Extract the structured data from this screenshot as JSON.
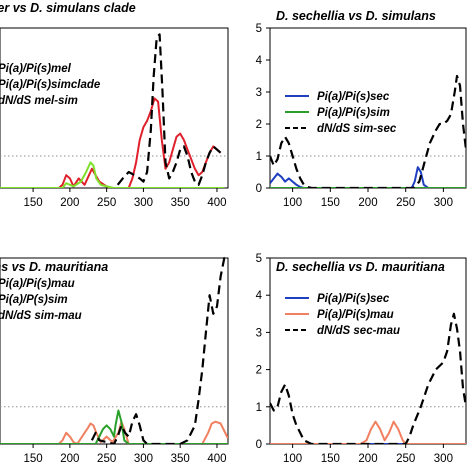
{
  "colors": {
    "blue": "#1f3fbf",
    "green": "#2aa02a",
    "lightgreen": "#7fe02a",
    "red": "#e0202a",
    "salmon": "#f08060",
    "black": "#000000",
    "threshold": "#909090"
  },
  "chart_data": [
    {
      "type": "line",
      "title": "D. melanogaster vs D. simulans clade",
      "xlim": [
        105,
        415
      ],
      "ylim": [
        0,
        5
      ],
      "xticks": [
        "150",
        "200",
        "250",
        "300",
        "350",
        "400"
      ],
      "yticks": [],
      "threshold": 1,
      "legend": {
        "placement": "top-left",
        "entries": [
          "Pi(a)/Pi(s)mel",
          "Pi(a)/Pi(s)simclade",
          "dN/dS mel-sim"
        ]
      },
      "series": [
        {
          "name": "Pi(a)/Pi(s)mel",
          "color": "#e0202a",
          "dash": "solid",
          "x": [
            105,
            185,
            190,
            195,
            200,
            205,
            212,
            220,
            230,
            240,
            250,
            258,
            265,
            272,
            280,
            285,
            290,
            295,
            300,
            305,
            310,
            315,
            320,
            325,
            330,
            335,
            340,
            345,
            350,
            355,
            360,
            365,
            370,
            375,
            380,
            385,
            390,
            395,
            400,
            405
          ],
          "y": [
            0,
            0,
            0.1,
            0.4,
            0.3,
            0.05,
            0.3,
            0.1,
            0.6,
            0.2,
            0.05,
            0,
            0,
            0,
            0,
            0.3,
            0.8,
            1.5,
            1.9,
            2.1,
            2.4,
            2.8,
            2.7,
            1.5,
            0.6,
            0.8,
            1.2,
            1.6,
            1.7,
            1.5,
            1.2,
            0.9,
            0.6,
            0.4,
            0.5,
            0.8,
            1.1,
            1.3,
            1.2,
            1.1
          ]
        },
        {
          "name": "Pi(a)/Pi(s)simclade",
          "color": "#7fe02a",
          "dash": "solid",
          "x": [
            105,
            180,
            190,
            195,
            200,
            205,
            215,
            222,
            228,
            232,
            236,
            242,
            250,
            260,
            290,
            295,
            300,
            310,
            320,
            330,
            340,
            350,
            360,
            370,
            380,
            390,
            400,
            410
          ],
          "y": [
            0,
            0,
            0,
            0.15,
            0.1,
            0.05,
            0.2,
            0.5,
            0.8,
            0.7,
            0.3,
            0.1,
            0.05,
            0,
            0,
            0,
            0,
            0,
            0,
            0,
            0,
            0,
            0,
            0,
            0,
            0,
            0,
            0
          ]
        },
        {
          "name": "dN/dS mel-sim",
          "color": "#000000",
          "dash": "dashed",
          "x": [
            265,
            272,
            280,
            288,
            295,
            300,
            305,
            310,
            314,
            318,
            322,
            326,
            330,
            335,
            340,
            345,
            350,
            355,
            360,
            365,
            370,
            375,
            380,
            385,
            390,
            395,
            400,
            405
          ],
          "y": [
            0.1,
            0.3,
            0.5,
            0.4,
            0.3,
            0.2,
            0.5,
            1.8,
            3.5,
            4.7,
            4.8,
            3.0,
            0.8,
            0.3,
            0.5,
            0.8,
            1.2,
            1.3,
            1.0,
            0.5,
            0.2,
            0.1,
            0.4,
            0.8,
            1.1,
            1.3,
            1.2,
            1.1
          ]
        }
      ]
    },
    {
      "type": "line",
      "title": "D. sechellia vs D. simulans",
      "xlim": [
        70,
        330
      ],
      "ylim": [
        0,
        5
      ],
      "xticks": [
        "100",
        "150",
        "200",
        "250",
        "300"
      ],
      "yticks": [
        "0",
        "1",
        "2",
        "3",
        "4",
        "5"
      ],
      "threshold": 1,
      "legend": {
        "placement": "center-right",
        "entries": [
          "Pi(a)/Pi(s)sec",
          "Pi(a)/Pi(s)sim",
          "dN/dS sim-sec"
        ]
      },
      "series": [
        {
          "name": "Pi(a)/Pi(s)sec",
          "color": "#1f3fbf",
          "dash": "solid",
          "x": [
            70,
            75,
            80,
            85,
            90,
            95,
            100,
            105,
            110,
            115,
            120,
            250,
            258,
            262,
            266,
            270,
            274,
            280,
            330
          ],
          "y": [
            0.15,
            0.3,
            0.45,
            0.35,
            0.2,
            0.3,
            0.2,
            0.1,
            0.03,
            0,
            0,
            0,
            0,
            0.2,
            0.65,
            0.5,
            0.1,
            0,
            0
          ]
        },
        {
          "name": "Pi(a)/Pi(s)sim",
          "color": "#2aa02a",
          "dash": "solid",
          "x": [
            70,
            100,
            150,
            200,
            250,
            280,
            300,
            330
          ],
          "y": [
            0,
            0,
            0,
            0,
            0,
            0,
            0,
            0
          ]
        },
        {
          "name": "dN/dS sim-sec",
          "color": "#000000",
          "dash": "dashed",
          "x": [
            70,
            75,
            80,
            85,
            90,
            95,
            100,
            105,
            110,
            115,
            120,
            125,
            260,
            268,
            275,
            282,
            290,
            295,
            300,
            305,
            310,
            315,
            318,
            322,
            326,
            330
          ],
          "y": [
            1.0,
            0.7,
            0.9,
            1.4,
            1.6,
            1.4,
            1.0,
            0.6,
            0.3,
            0.1,
            0.03,
            0,
            0,
            0.2,
            0.8,
            1.4,
            1.8,
            2.0,
            2.0,
            2.1,
            2.3,
            3.0,
            3.5,
            3.2,
            2.0,
            1.2
          ]
        }
      ]
    },
    {
      "type": "line",
      "title": "D. simulans vs D. mauritiana",
      "xlim": [
        105,
        415
      ],
      "ylim": [
        0,
        5
      ],
      "xticks": [
        "150",
        "200",
        "250",
        "300",
        "350",
        "400"
      ],
      "yticks": [],
      "threshold": 1,
      "legend": {
        "placement": "top-left",
        "entries": [
          "Pi(a)/Pi(s)mau",
          "Pi(a)/P(s)sim",
          "dN/dS sim-mau"
        ]
      },
      "series": [
        {
          "name": "Pi(a)/Pi(s)mau",
          "color": "#f08060",
          "dash": "solid",
          "x": [
            105,
            185,
            190,
            195,
            200,
            205,
            210,
            220,
            225,
            228,
            232,
            236,
            242,
            250,
            258,
            266,
            270,
            274,
            280,
            380,
            388,
            393,
            398,
            405,
            410,
            415
          ],
          "y": [
            0,
            0,
            0.1,
            0.3,
            0.2,
            0.05,
            0,
            0.3,
            0.45,
            0.55,
            0.5,
            0.3,
            0.05,
            0.2,
            0.05,
            0.3,
            0.6,
            0.4,
            0,
            0,
            0.3,
            0.55,
            0.6,
            0.55,
            0.35,
            0.15
          ]
        },
        {
          "name": "Pi(a)/P(s)sim",
          "color": "#2aa02a",
          "dash": "solid",
          "x": [
            105,
            235,
            240,
            245,
            250,
            255,
            260,
            262,
            266,
            270,
            274,
            280,
            415
          ],
          "y": [
            0,
            0,
            0.2,
            0.4,
            0.5,
            0.4,
            0.2,
            0.5,
            0.9,
            0.6,
            0.1,
            0,
            0
          ]
        },
        {
          "name": "dN/dS sim-mau",
          "color": "#000000",
          "dash": "dashed",
          "x": [
            230,
            235,
            240,
            260,
            265,
            270,
            275,
            280,
            285,
            290,
            295,
            300,
            305,
            350,
            360,
            370,
            375,
            380,
            385,
            390,
            395,
            400,
            405,
            410,
            415
          ],
          "y": [
            0.1,
            0.3,
            0.1,
            0,
            0.2,
            0.5,
            0.3,
            0.2,
            0.6,
            0.8,
            0.5,
            0.1,
            0,
            0,
            0.1,
            0.5,
            1.2,
            2.0,
            3.0,
            4.0,
            3.5,
            3.7,
            4.5,
            5.0,
            5.0
          ]
        }
      ]
    },
    {
      "type": "line",
      "title": "D. sechellia vs D. mauritiana",
      "xlim": [
        70,
        330
      ],
      "ylim": [
        0,
        5
      ],
      "xticks": [
        "100",
        "150",
        "200",
        "250",
        "300"
      ],
      "yticks": [
        "0",
        "1",
        "2",
        "3",
        "4",
        "5"
      ],
      "threshold": 1,
      "legend": {
        "placement": "center-right",
        "entries": [
          "Pi(a)/Pi(s)sec",
          "Pi(a)/Pi(s)mau",
          "dN/dS sec-mau"
        ]
      },
      "series": [
        {
          "name": "Pi(a)/Pi(s)sec",
          "color": "#1f3fbf",
          "dash": "solid",
          "x": [
            70,
            150,
            250,
            330
          ],
          "y": [
            0,
            0,
            0,
            0
          ]
        },
        {
          "name": "Pi(a)/Pi(s)mau",
          "color": "#f08060",
          "dash": "solid",
          "x": [
            70,
            190,
            198,
            204,
            210,
            216,
            222,
            228,
            234,
            240,
            246,
            250,
            330
          ],
          "y": [
            0,
            0,
            0.1,
            0.4,
            0.6,
            0.4,
            0.1,
            0.3,
            0.6,
            0.4,
            0.1,
            0,
            0
          ]
        },
        {
          "name": "dN/dS sec-mau",
          "color": "#000000",
          "dash": "dashed",
          "x": [
            70,
            75,
            80,
            85,
            90,
            95,
            100,
            105,
            110,
            115,
            120,
            125,
            130,
            250,
            255,
            260,
            270,
            280,
            290,
            300,
            305,
            310,
            314,
            318,
            322,
            326,
            330
          ],
          "y": [
            1.1,
            0.9,
            1.0,
            1.4,
            1.6,
            1.3,
            0.8,
            0.5,
            0.3,
            0.1,
            0.05,
            0,
            0,
            0,
            0.2,
            0.5,
            1.0,
            1.6,
            2.0,
            2.2,
            2.5,
            3.2,
            3.5,
            3.1,
            2.5,
            1.5,
            1.0
          ]
        }
      ]
    }
  ]
}
